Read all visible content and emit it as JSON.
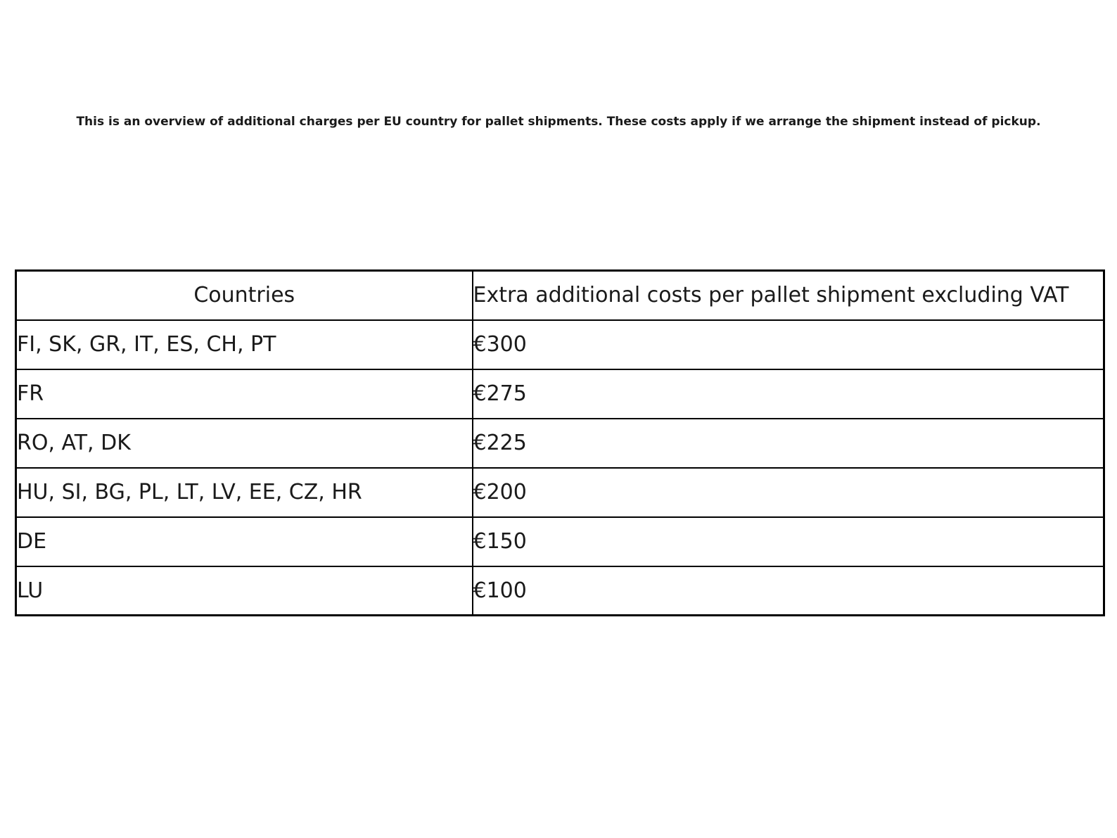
{
  "page": {
    "intro": "This is an overview of additional charges per EU country for pallet shipments. These costs apply if we arrange the shipment instead of pickup."
  },
  "table": {
    "columns": [
      "Countries",
      "Extra additional costs per pallet shipment excluding VAT"
    ],
    "rows": [
      {
        "countries": "FI, SK, GR, IT, ES, CH, PT",
        "cost": "€300"
      },
      {
        "countries": "FR",
        "cost": "€275"
      },
      {
        "countries": "RO, AT, DK",
        "cost": "€225"
      },
      {
        "countries": "HU, SI, BG, PL, LT, LV, EE, CZ, HR",
        "cost": "€200"
      },
      {
        "countries": "DE",
        "cost": "€150"
      },
      {
        "countries": "LU",
        "cost": "€100"
      }
    ]
  },
  "colors": {
    "text": "#1a1a1a",
    "border": "#000000",
    "background": "#ffffff"
  }
}
